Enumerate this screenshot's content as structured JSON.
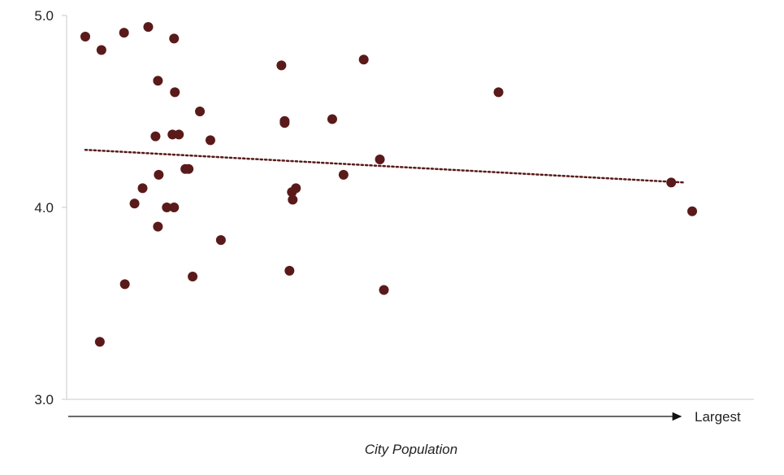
{
  "colors": {
    "point": "#5a1a1a",
    "trendline": "#5a1a1a",
    "axis": "#c8c8c8",
    "arrow": "#111111"
  },
  "chart_data": {
    "type": "scatter",
    "title": "",
    "xlabel": "City Population",
    "ylabel": "",
    "x_axis_end_label": "Largest",
    "x_ticks_shown": false,
    "ylim": [
      3.0,
      5.0
    ],
    "y_ticks": [
      "3.0",
      "4.0",
      "5.0"
    ],
    "grid": false,
    "legend": "none",
    "trendline": {
      "style": "dotted",
      "x": [
        0.2,
        74.3
      ],
      "y": [
        4.3,
        4.13
      ]
    },
    "series": [
      {
        "x": [
          0.2,
          2.2,
          5.0,
          8.0,
          11.2,
          9.2,
          11.3,
          11.8,
          24.5,
          34.7,
          51.4,
          2.0,
          5.1,
          6.3,
          7.3,
          8.9,
          9.2,
          9.3,
          10.3,
          11.0,
          11.2,
          12.6,
          13.0,
          13.5,
          14.4,
          15.7,
          17.0,
          24.9,
          24.9,
          25.5,
          25.8,
          25.9,
          26.3,
          30.8,
          32.2,
          36.7,
          37.2,
          72.8,
          75.4
        ],
        "y": [
          4.89,
          4.82,
          4.91,
          4.94,
          4.88,
          4.66,
          4.6,
          4.38,
          4.74,
          4.77,
          4.6,
          3.3,
          3.6,
          4.02,
          4.1,
          4.37,
          3.9,
          4.17,
          4.0,
          4.38,
          4.0,
          4.2,
          4.2,
          3.64,
          4.5,
          4.35,
          3.83,
          4.44,
          4.45,
          3.67,
          4.08,
          4.04,
          4.1,
          4.46,
          4.17,
          4.25,
          3.57,
          4.13,
          3.98
        ]
      }
    ]
  }
}
